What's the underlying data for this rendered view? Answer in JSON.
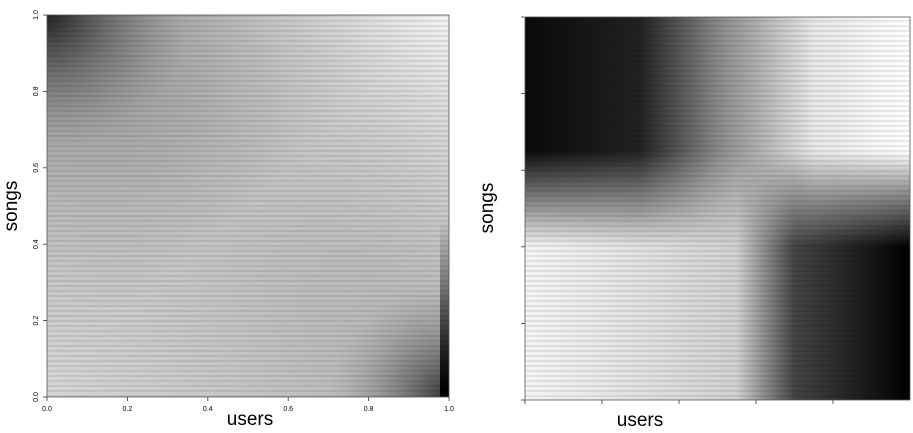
{
  "chart_data": [
    {
      "type": "heatmap",
      "x_label": "users",
      "y_label": "songs",
      "xlim": [
        0,
        1
      ],
      "ylim": [
        0,
        1
      ],
      "xticks": [
        {
          "value": 0,
          "label": "0.0"
        },
        0.2,
        0.4,
        0.6,
        0.8,
        {
          "value": 1,
          "label": "1.0"
        }
      ],
      "yticks": [
        {
          "value": 0,
          "label": "0.0"
        },
        0.2,
        0.4,
        0.6,
        0.8,
        {
          "value": 1,
          "label": "1.0"
        }
      ],
      "tick_labels": true
    },
    {
      "type": "heatmap",
      "x_label": "users",
      "y_label": "songs",
      "xlim": [
        0,
        1
      ],
      "ylim": [
        0,
        1
      ],
      "xticks": [
        0,
        0.2,
        0.4,
        0.6,
        0.8
      ],
      "yticks": [
        0,
        0.2,
        0.4,
        0.6,
        0.8,
        1
      ],
      "tick_labels": false
    }
  ]
}
